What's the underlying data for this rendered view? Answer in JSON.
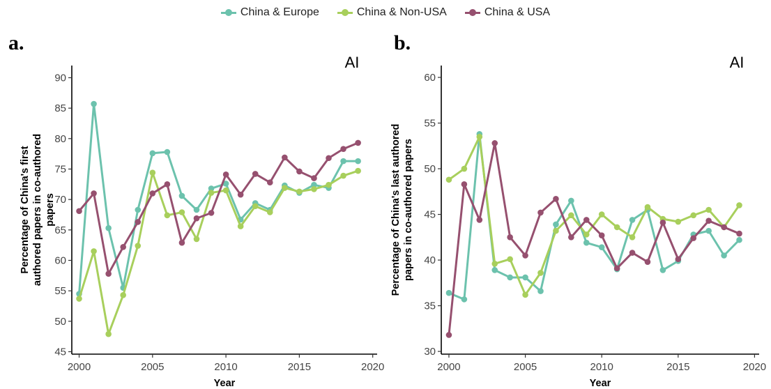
{
  "legend": [
    {
      "label": "China & Europe",
      "color": "#6cc2ad"
    },
    {
      "label": "China & Non-USA",
      "color": "#a8cf5c"
    },
    {
      "label": "China & USA",
      "color": "#96506f"
    }
  ],
  "chart_data": [
    {
      "type": "line",
      "panel_letter": "a.",
      "tag": "AI",
      "xlabel": "Year",
      "ylabel": [
        "Percentage of China's first",
        "authored papers in co-authored",
        "papers"
      ],
      "xlim": [
        1999.5,
        2020.3
      ],
      "ylim": [
        44.6,
        92.0
      ],
      "xticks": [
        2000,
        2005,
        2010,
        2015,
        2020
      ],
      "yticks": [
        45,
        50,
        55,
        60,
        65,
        70,
        75,
        80,
        85,
        90
      ],
      "grid": false,
      "x": [
        2000,
        2001,
        2002,
        2003,
        2004,
        2005,
        2006,
        2007,
        2008,
        2009,
        2010,
        2011,
        2012,
        2013,
        2014,
        2015,
        2016,
        2017,
        2018,
        2019
      ],
      "series": [
        {
          "name": "China & Europe",
          "values": [
            54.5,
            85.7,
            65.3,
            55.5,
            68.3,
            77.6,
            77.8,
            70.6,
            68.3,
            71.8,
            72.6,
            66.7,
            69.4,
            68.3,
            72.3,
            71.1,
            72.4,
            71.9,
            76.3,
            76.3
          ]
        },
        {
          "name": "China & Non-USA",
          "values": [
            53.7,
            61.5,
            47.9,
            54.3,
            62.4,
            74.4,
            67.4,
            67.9,
            63.5,
            71.1,
            71.5,
            65.6,
            68.9,
            67.9,
            71.9,
            71.3,
            71.7,
            72.4,
            73.9,
            74.7
          ]
        },
        {
          "name": "China & USA",
          "values": [
            68.1,
            71.0,
            57.8,
            62.2,
            66.3,
            71.0,
            72.5,
            62.9,
            66.9,
            67.8,
            74.1,
            70.8,
            74.2,
            72.8,
            76.9,
            74.6,
            73.5,
            76.8,
            78.3,
            79.3
          ]
        }
      ]
    },
    {
      "type": "line",
      "panel_letter": "b.",
      "tag": "AI",
      "xlabel": "Year",
      "ylabel": [
        "Percentage of China's last authored",
        "papers in co-authored papers"
      ],
      "xlim": [
        1999.5,
        2020.3
      ],
      "ylim": [
        29.7,
        61.3
      ],
      "xticks": [
        2000,
        2005,
        2010,
        2015,
        2020
      ],
      "yticks": [
        30,
        35,
        40,
        45,
        50,
        55,
        60
      ],
      "grid": false,
      "x": [
        2000,
        2001,
        2002,
        2003,
        2004,
        2005,
        2006,
        2007,
        2008,
        2009,
        2010,
        2011,
        2012,
        2013,
        2014,
        2015,
        2016,
        2017,
        2018,
        2019
      ],
      "series": [
        {
          "name": "China & Europe",
          "values": [
            36.4,
            35.7,
            53.8,
            38.9,
            38.1,
            38.1,
            36.6,
            43.9,
            46.5,
            41.9,
            41.4,
            39.0,
            44.4,
            45.5,
            38.9,
            39.9,
            42.8,
            43.2,
            40.5,
            42.2
          ]
        },
        {
          "name": "China & Non-USA",
          "values": [
            48.8,
            50.0,
            53.5,
            39.6,
            40.1,
            36.2,
            38.6,
            43.2,
            44.9,
            42.8,
            45.0,
            43.6,
            42.5,
            45.8,
            44.5,
            44.2,
            44.9,
            45.5,
            43.6,
            46.0
          ]
        },
        {
          "name": "China & USA",
          "values": [
            31.8,
            48.3,
            44.4,
            52.8,
            42.5,
            40.5,
            45.2,
            46.7,
            42.5,
            44.4,
            42.7,
            39.1,
            40.8,
            39.8,
            44.1,
            40.1,
            42.4,
            44.3,
            43.6,
            42.9
          ]
        }
      ]
    }
  ]
}
